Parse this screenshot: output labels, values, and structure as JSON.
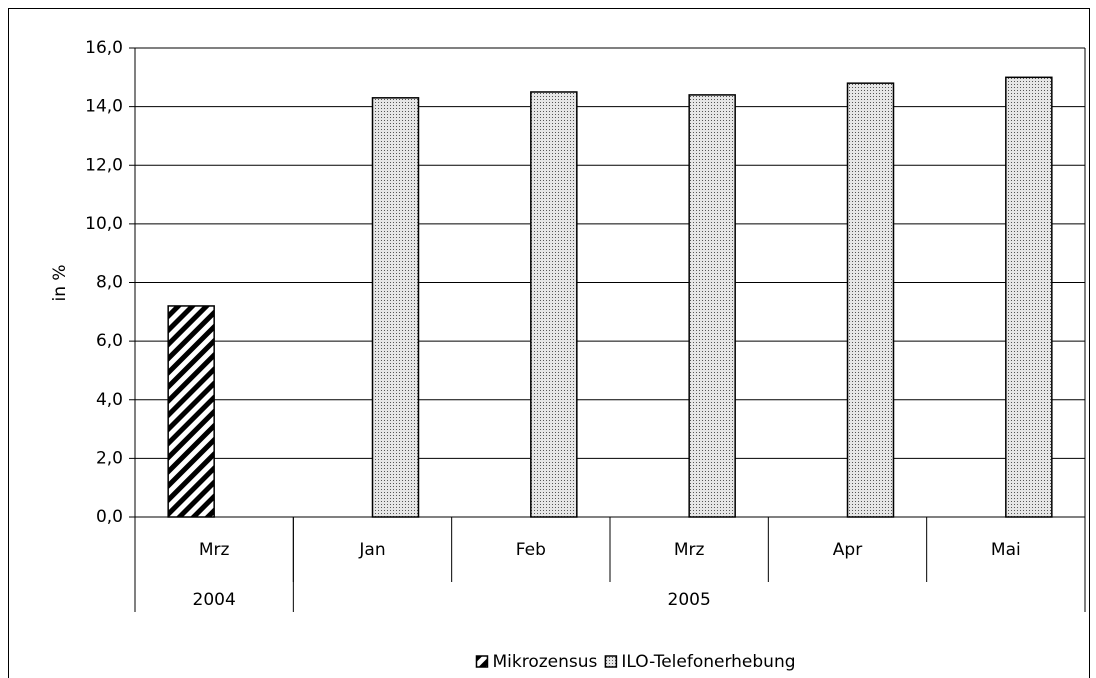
{
  "chart_data": {
    "type": "bar",
    "y_label": "in %",
    "categories": [
      "Mrz",
      "Jan",
      "Feb",
      "Mrz",
      "Apr",
      "Mai"
    ],
    "category_groups": [
      {
        "label": "2004",
        "span": 1
      },
      {
        "label": "2005",
        "span": 5
      }
    ],
    "series": [
      {
        "name": "Mikrozensus",
        "pattern": "hatch",
        "color": "#000000",
        "values": [
          7.2,
          null,
          null,
          null,
          null,
          null
        ]
      },
      {
        "name": "ILO-Telefonerhebung",
        "pattern": "dots",
        "color": "#808080",
        "values": [
          null,
          14.3,
          14.5,
          14.4,
          14.8,
          15.0
        ]
      }
    ],
    "ylim": [
      0,
      16
    ],
    "yticks": [
      {
        "value": 0,
        "label": "0,0"
      },
      {
        "value": 2,
        "label": "2,0"
      },
      {
        "value": 4,
        "label": "4,0"
      },
      {
        "value": 6,
        "label": "6,0"
      },
      {
        "value": 8,
        "label": "8,0"
      },
      {
        "value": 10,
        "label": "10,0"
      },
      {
        "value": 12,
        "label": "12,0"
      },
      {
        "value": 14,
        "label": "14,0"
      },
      {
        "value": 16,
        "label": "16,0"
      }
    ],
    "grid": true,
    "legend": "bottom"
  }
}
